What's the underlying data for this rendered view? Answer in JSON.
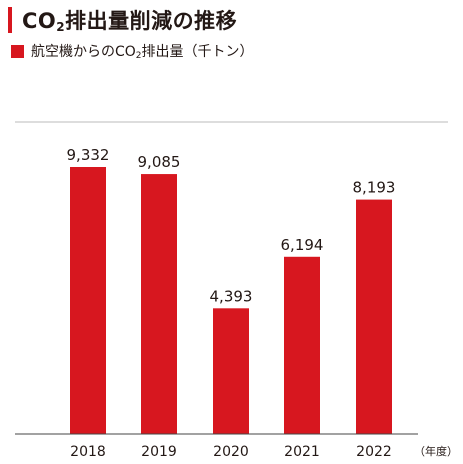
{
  "title": {
    "prefix": "CO",
    "sub": "2",
    "suffix": "排出量削減の推移"
  },
  "legend": {
    "prefix": "航空機からのCO",
    "sub": "2",
    "suffix": "排出量（千トン）"
  },
  "colors": {
    "accent": "#d7171f",
    "text": "#231815",
    "axis": "#444444",
    "top_rule": "#bbbbbb"
  },
  "unit_label": "（年度）",
  "chart_data": {
    "type": "bar",
    "title": "CO₂排出量削減の推移",
    "categories": [
      "2018",
      "2019",
      "2020",
      "2021",
      "2022"
    ],
    "series": [
      {
        "name": "航空機からのCO₂排出量（千トン）",
        "values": [
          9332,
          9085,
          4393,
          6194,
          8193
        ],
        "labels": [
          "9,332",
          "9,085",
          "4,393",
          "6,194",
          "8,193"
        ]
      }
    ],
    "xlabel": "（年度）",
    "ylabel": "",
    "ylim": [
      0,
      11000
    ],
    "grid": false,
    "legend_position": "top-left"
  }
}
